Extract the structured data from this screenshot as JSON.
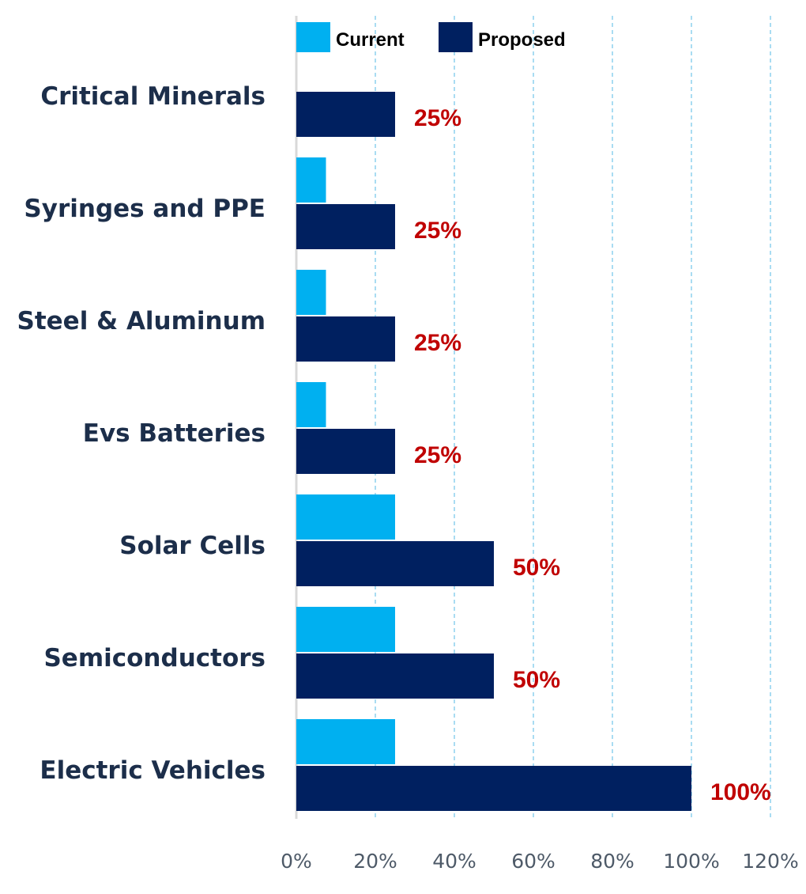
{
  "chart_data": {
    "type": "bar",
    "orientation": "horizontal",
    "categories": [
      "Critical Minerals",
      "Syringes and PPE",
      "Steel & Aluminum",
      "Evs Batteries",
      "Solar Cells",
      "Semiconductors",
      "Electric Vehicles"
    ],
    "series": [
      {
        "name": "Current",
        "values": [
          0,
          7.5,
          7.5,
          7.5,
          25,
          25,
          25
        ],
        "color": "#00b0f0"
      },
      {
        "name": "Proposed",
        "values": [
          25,
          25,
          25,
          25,
          50,
          50,
          100
        ],
        "color": "#002060"
      }
    ],
    "data_labels": [
      "25%",
      "25%",
      "25%",
      "25%",
      "50%",
      "50%",
      "100%"
    ],
    "data_label_color": "#c00000",
    "xlim": [
      0,
      120
    ],
    "xticks": [
      0,
      20,
      40,
      60,
      80,
      100,
      120
    ],
    "xtick_labels": [
      "0%",
      "20%",
      "40%",
      "60%",
      "80%",
      "100%",
      "120%"
    ],
    "grid": "vertical-dashed",
    "legend": {
      "position": "top",
      "items": [
        "Current",
        "Proposed"
      ]
    },
    "axis_color": "#d9d9d9",
    "grid_color": "#a9dcf2"
  }
}
